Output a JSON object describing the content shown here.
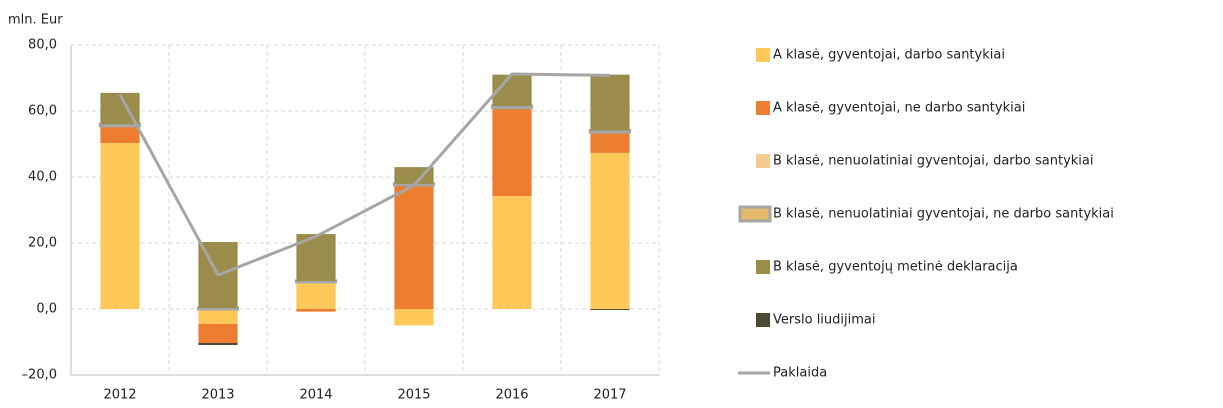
{
  "chart_data": {
    "type": "stacked_bar_line",
    "y_label": "mln. Eur",
    "categories": [
      "2012",
      "2013",
      "2014",
      "2015",
      "2016",
      "2017"
    ],
    "series": [
      {
        "name": "A klasė, gyventojai, darbo santykiai",
        "color": "#ffc95a",
        "values": [
          50.3,
          -4.5,
          8.2,
          -5.0,
          34.2,
          47.3
        ]
      },
      {
        "name": "A klasė, gyventojai, ne darbo santykiai",
        "color": "#ed7d31",
        "values": [
          5.2,
          -5.8,
          -0.8,
          37.6,
          26.8,
          6.3
        ]
      },
      {
        "name": "B klasė, nenuolatiniai gyventojai, darbo santykiai",
        "color": "#f6cb92",
        "values": [
          0,
          0,
          0,
          0,
          0,
          0
        ]
      },
      {
        "name": "B klasė, nenuolatiniai gyventojai, ne darbo santykiai",
        "color": "#e3b96c",
        "values": [
          0.5,
          0.3,
          0.3,
          0.3,
          0.5,
          0.5
        ]
      },
      {
        "name": "B klasė, gyventojų metinė deklaracija",
        "color": "#9a8d4b",
        "values": [
          9.5,
          20.0,
          14.2,
          5.1,
          9.5,
          16.9
        ]
      },
      {
        "name": "Verslo liudijimai",
        "color": "#4d4a37",
        "values": [
          0,
          -0.6,
          0,
          0,
          0,
          -0.3
        ]
      },
      {
        "name": "Paklaida",
        "color": "#a6a6a6",
        "kind": "line",
        "values": [
          65.0,
          10.3,
          22.0,
          37.5,
          71.2,
          70.8
        ]
      }
    ],
    "ylim": [
      -20,
      80
    ],
    "yticks": [
      {
        "value": -20,
        "label": "–20,0"
      },
      {
        "value": 0,
        "label": "0,0"
      },
      {
        "value": 20,
        "label": "20,0"
      },
      {
        "value": 40,
        "label": "40,0"
      },
      {
        "value": 60,
        "label": "60,0"
      },
      {
        "value": 80,
        "label": "80,0"
      }
    ],
    "grid": true,
    "legend": "right"
  }
}
